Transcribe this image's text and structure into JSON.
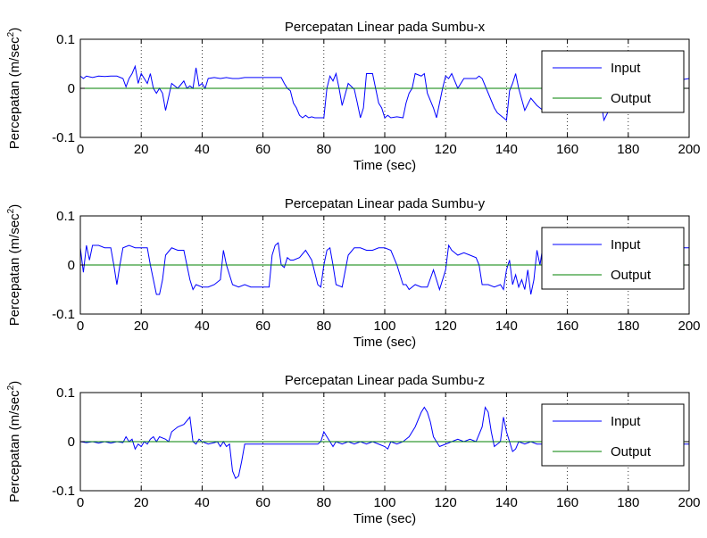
{
  "chart_data": [
    {
      "type": "line",
      "title": "Percepatan Linear pada Sumbu-x",
      "xlabel": "Time (sec)",
      "ylabel": "Percepatan (m/sec",
      "ylabel_sup": "2",
      "ylabel_end": ")",
      "xlim": [
        0,
        200
      ],
      "ylim": [
        -0.1,
        0.1
      ],
      "xticks": [
        0,
        20,
        40,
        60,
        80,
        100,
        120,
        140,
        160,
        180,
        200
      ],
      "xtick_labels": [
        "0",
        "20",
        "40",
        "60",
        "80",
        "100",
        "120",
        "140",
        "160",
        "180",
        "200"
      ],
      "yticks": [
        -0.1,
        0,
        0.1
      ],
      "ytick_labels": [
        "-0.1",
        "0",
        "0.1"
      ],
      "grid": "x-dotted",
      "legend": "top-right",
      "series": [
        {
          "name": "Input",
          "color": "#0000ff",
          "x": [
            0,
            1,
            2,
            4,
            6,
            8,
            10,
            12,
            14,
            15,
            16,
            17,
            18,
            19,
            20,
            21,
            22,
            23,
            24,
            25,
            26,
            27,
            28,
            30,
            32,
            34,
            35,
            36,
            37,
            38,
            39,
            40,
            41,
            42,
            44,
            46,
            48,
            50,
            52,
            54,
            56,
            58,
            60,
            62,
            64,
            66,
            67,
            68,
            69,
            70,
            71,
            72,
            73,
            74,
            75,
            76,
            77,
            78,
            79,
            80,
            81,
            82,
            83,
            84,
            85,
            86,
            88,
            90,
            91,
            92,
            93,
            94,
            96,
            97,
            98,
            99,
            100,
            101,
            102,
            104,
            106,
            107,
            108,
            109,
            110,
            112,
            113,
            114,
            116,
            117,
            118,
            119,
            120,
            121,
            122,
            124,
            126,
            128,
            130,
            131,
            132,
            134,
            136,
            137,
            138,
            139,
            140,
            141,
            142,
            143,
            144,
            146,
            148,
            150,
            152,
            154,
            156,
            158,
            160,
            162,
            164,
            166,
            168,
            170,
            172,
            174,
            176,
            178,
            180,
            182,
            184,
            186,
            188,
            190,
            192,
            194,
            196,
            198,
            200
          ],
          "y": [
            0.025,
            0.02,
            0.025,
            0.022,
            0.025,
            0.024,
            0.025,
            0.025,
            0.02,
            0.003,
            0.02,
            0.03,
            0.045,
            0.01,
            0.03,
            0.02,
            0.01,
            0.03,
            0.0,
            -0.01,
            0.0,
            -0.01,
            -0.045,
            0.01,
            0.0,
            0.015,
            0.0,
            0.005,
            0.0,
            0.042,
            0.005,
            0.01,
            0.0,
            0.02,
            0.022,
            0.02,
            0.022,
            0.02,
            0.02,
            0.022,
            0.022,
            0.022,
            0.022,
            0.022,
            0.022,
            0.022,
            0.01,
            0.0,
            -0.005,
            -0.03,
            -0.04,
            -0.055,
            -0.06,
            -0.055,
            -0.06,
            -0.058,
            -0.06,
            -0.06,
            -0.06,
            -0.06,
            0.0,
            0.025,
            0.015,
            0.03,
            0.0,
            -0.035,
            0.01,
            -0.002,
            -0.03,
            -0.06,
            -0.04,
            0.03,
            0.03,
            0.0,
            -0.03,
            -0.04,
            -0.06,
            -0.055,
            -0.06,
            -0.058,
            -0.06,
            -0.03,
            -0.01,
            0.0,
            0.03,
            0.025,
            0.03,
            -0.01,
            -0.04,
            -0.06,
            -0.03,
            0.0,
            0.025,
            0.02,
            0.03,
            0.0,
            0.02,
            0.02,
            0.02,
            0.025,
            0.02,
            -0.01,
            -0.04,
            -0.05,
            -0.055,
            -0.06,
            -0.065,
            -0.005,
            0.01,
            0.03,
            0.0,
            -0.045,
            -0.02,
            -0.035,
            -0.045,
            0.025,
            0.02,
            0.018,
            0.02,
            0.02,
            0.018,
            0.02,
            0.02,
            0.018,
            -0.065,
            -0.04,
            0.015,
            0.02,
            0.0,
            0.025,
            0.02,
            0.025,
            0.02,
            0.018,
            0.02,
            0.025,
            0.02,
            0.018,
            0.02
          ]
        },
        {
          "name": "Output",
          "color": "#008000",
          "x": [
            0,
            200
          ],
          "y": [
            0,
            0
          ]
        }
      ]
    },
    {
      "type": "line",
      "title": "Percepatan Linear pada Sumbu-y",
      "xlabel": "Time (sec)",
      "ylabel": "Percepatan (m/sec",
      "ylabel_sup": "2",
      "ylabel_end": ")",
      "xlim": [
        0,
        200
      ],
      "ylim": [
        -0.1,
        0.1
      ],
      "xticks": [
        0,
        20,
        40,
        60,
        80,
        100,
        120,
        140,
        160,
        180,
        200
      ],
      "xtick_labels": [
        "0",
        "20",
        "40",
        "60",
        "80",
        "100",
        "120",
        "140",
        "160",
        "180",
        "200"
      ],
      "yticks": [
        -0.1,
        0,
        0.1
      ],
      "ytick_labels": [
        "-0.1",
        "0",
        "0.1"
      ],
      "grid": "x-dotted",
      "legend": "top-right",
      "series": [
        {
          "name": "Input",
          "color": "#0000ff",
          "x": [
            0,
            1,
            2,
            3,
            4,
            6,
            8,
            10,
            11,
            12,
            13,
            14,
            16,
            18,
            20,
            22,
            23,
            24,
            25,
            26,
            27,
            28,
            30,
            32,
            34,
            35,
            36,
            37,
            38,
            40,
            42,
            44,
            46,
            47,
            48,
            50,
            52,
            54,
            56,
            58,
            60,
            62,
            63,
            64,
            65,
            66,
            67,
            68,
            69,
            70,
            72,
            74,
            76,
            78,
            79,
            80,
            81,
            82,
            83,
            84,
            86,
            88,
            90,
            92,
            94,
            96,
            98,
            100,
            102,
            104,
            106,
            107,
            108,
            110,
            112,
            114,
            116,
            118,
            120,
            121,
            122,
            124,
            126,
            128,
            130,
            131,
            132,
            134,
            136,
            138,
            139,
            140,
            141,
            142,
            143,
            144,
            145,
            146,
            147,
            148,
            149,
            150,
            151,
            152,
            153,
            154,
            156,
            158,
            160,
            170,
            180,
            190,
            195,
            198,
            200
          ],
          "y": [
            0.035,
            -0.015,
            0.04,
            0.01,
            0.04,
            0.04,
            0.035,
            0.035,
            0.0,
            -0.04,
            0.0,
            0.035,
            0.04,
            0.035,
            0.035,
            0.035,
            0.0,
            -0.03,
            -0.06,
            -0.06,
            -0.03,
            0.02,
            0.035,
            0.03,
            0.03,
            0.0,
            -0.03,
            -0.05,
            -0.04,
            -0.045,
            -0.045,
            -0.04,
            -0.03,
            0.03,
            0.0,
            -0.04,
            -0.045,
            -0.04,
            -0.045,
            -0.045,
            -0.045,
            -0.045,
            0.02,
            0.04,
            0.045,
            0.0,
            -0.005,
            0.015,
            0.01,
            0.01,
            0.015,
            0.03,
            0.01,
            -0.04,
            -0.045,
            0.0,
            0.03,
            0.035,
            0.0,
            -0.04,
            -0.045,
            0.02,
            0.035,
            0.035,
            0.03,
            0.03,
            0.035,
            0.035,
            0.03,
            0.0,
            -0.04,
            -0.04,
            -0.05,
            -0.04,
            -0.045,
            -0.045,
            -0.01,
            -0.05,
            -0.01,
            0.04,
            0.03,
            0.02,
            0.025,
            0.02,
            0.015,
            0.0,
            -0.04,
            -0.04,
            -0.045,
            -0.04,
            -0.05,
            -0.01,
            0.01,
            -0.04,
            -0.02,
            -0.045,
            -0.03,
            -0.05,
            -0.01,
            -0.06,
            -0.03,
            0.03,
            0.0,
            0.04,
            0.01,
            0.04,
            0.035,
            0.035,
            0.035,
            0.035,
            0.035,
            0.035,
            0.035,
            0.035,
            0.035
          ]
        },
        {
          "name": "Output",
          "color": "#008000",
          "x": [
            0,
            200
          ],
          "y": [
            0,
            0
          ]
        }
      ]
    },
    {
      "type": "line",
      "title": "Percepatan Linear pada Sumbu-z",
      "xlabel": "Time (sec)",
      "ylabel": "Percepatan (m/sec",
      "ylabel_sup": "2",
      "ylabel_end": ")",
      "xlim": [
        0,
        200
      ],
      "ylim": [
        -0.1,
        0.1
      ],
      "xticks": [
        0,
        20,
        40,
        60,
        80,
        100,
        120,
        140,
        160,
        180,
        200
      ],
      "xtick_labels": [
        "0",
        "20",
        "40",
        "60",
        "80",
        "100",
        "120",
        "140",
        "160",
        "180",
        "200"
      ],
      "yticks": [
        -0.1,
        0,
        0.1
      ],
      "ytick_labels": [
        "-0.1",
        "0",
        "0.1"
      ],
      "grid": "x-dotted",
      "legend": "top-right",
      "series": [
        {
          "name": "Input",
          "color": "#0000ff",
          "x": [
            0,
            2,
            4,
            6,
            8,
            10,
            12,
            14,
            15,
            16,
            17,
            18,
            19,
            20,
            21,
            22,
            23,
            24,
            25,
            26,
            28,
            29,
            30,
            32,
            34,
            36,
            37,
            38,
            39,
            40,
            42,
            44,
            45,
            46,
            47,
            48,
            49,
            50,
            51,
            52,
            53,
            54,
            56,
            58,
            60,
            65,
            70,
            75,
            78,
            79,
            80,
            81,
            82,
            83,
            84,
            86,
            88,
            90,
            92,
            94,
            96,
            98,
            100,
            101,
            102,
            104,
            106,
            108,
            110,
            112,
            113,
            114,
            115,
            116,
            117,
            118,
            120,
            122,
            124,
            126,
            128,
            130,
            132,
            133,
            134,
            135,
            136,
            137,
            138,
            139,
            140,
            141,
            142,
            143,
            144,
            146,
            148,
            150,
            155,
            160,
            170,
            180,
            190,
            200
          ],
          "y": [
            0.0,
            -0.002,
            0.0,
            -0.003,
            0.0,
            -0.003,
            0.0,
            -0.002,
            0.01,
            0.0,
            0.005,
            -0.015,
            -0.005,
            -0.01,
            0.0,
            -0.005,
            0.005,
            0.01,
            0.0,
            0.01,
            0.005,
            0.0,
            0.02,
            0.03,
            0.035,
            0.05,
            0.0,
            -0.005,
            0.005,
            0.0,
            -0.005,
            -0.002,
            0.0,
            -0.01,
            0.0,
            -0.01,
            -0.005,
            -0.06,
            -0.075,
            -0.07,
            -0.04,
            -0.005,
            -0.005,
            -0.005,
            -0.005,
            -0.005,
            -0.005,
            -0.005,
            -0.005,
            0.0,
            0.02,
            0.01,
            0.0,
            -0.01,
            0.0,
            -0.005,
            0.0,
            -0.005,
            0.0,
            -0.005,
            0.0,
            -0.005,
            -0.01,
            -0.015,
            0.0,
            -0.005,
            0.0,
            0.01,
            0.03,
            0.06,
            0.07,
            0.06,
            0.04,
            0.01,
            0.0,
            -0.01,
            -0.005,
            0.0,
            0.005,
            0.0,
            0.005,
            0.0,
            0.03,
            0.07,
            0.06,
            0.02,
            -0.01,
            -0.005,
            0.0,
            0.05,
            0.02,
            0.0,
            -0.02,
            -0.015,
            0.0,
            -0.005,
            0.0,
            -0.005,
            -0.005,
            -0.005,
            -0.005,
            -0.005,
            -0.005,
            -0.005
          ]
        },
        {
          "name": "Output",
          "color": "#008000",
          "x": [
            0,
            200
          ],
          "y": [
            0,
            0
          ]
        }
      ]
    }
  ]
}
